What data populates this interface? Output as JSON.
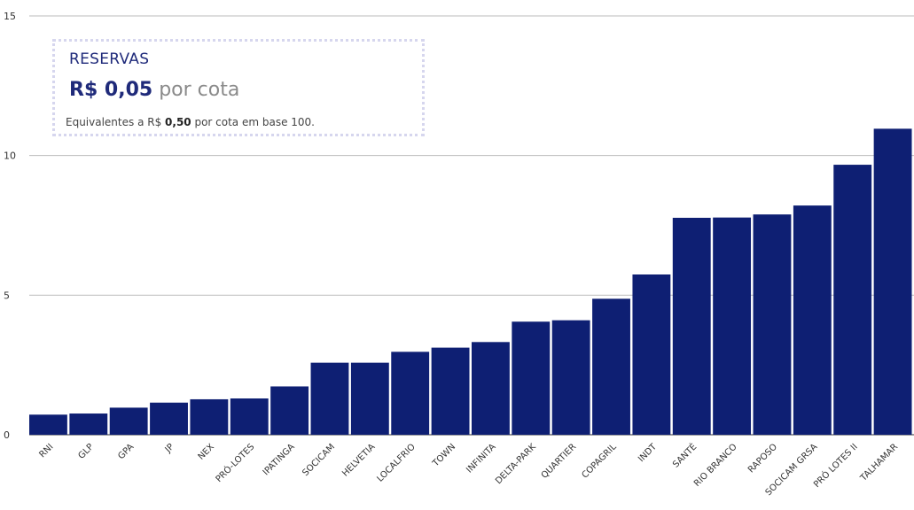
{
  "chart_data": {
    "type": "bar",
    "categories": [
      "RNI",
      "GLP",
      "GPA",
      "JP",
      "NEX",
      "PRÓ-LOTES",
      "IPATINGA",
      "SOCICAM",
      "HELVETIA",
      "LOCALFRIO",
      "TOWN",
      "INFINITA",
      "DELTA-PARK",
      "QUARTIER",
      "COPAGRIL",
      "INDT",
      "SANTÉ",
      "RIO BRANCO",
      "RAPOSO",
      "SOCICAM GRSA",
      "PRÓ LOTES II",
      "TALHAMAR"
    ],
    "values": [
      0.72,
      0.76,
      0.97,
      1.15,
      1.27,
      1.3,
      1.73,
      2.58,
      2.58,
      2.97,
      3.12,
      3.32,
      4.05,
      4.1,
      4.87,
      5.74,
      7.77,
      7.78,
      7.89,
      8.21,
      9.67,
      10.96
    ],
    "ylim": [
      0,
      15
    ],
    "yticks": [
      "0",
      "5",
      "10",
      "15"
    ],
    "grid": true,
    "bar_color": "#0e1f73"
  },
  "card": {
    "title": "RESERVAS",
    "value": "R$ 0,05",
    "unit": "por cota",
    "note_prefix": "Equivalentes a R$ ",
    "note_value": "0,50",
    "note_suffix": " por cota em base 100."
  }
}
